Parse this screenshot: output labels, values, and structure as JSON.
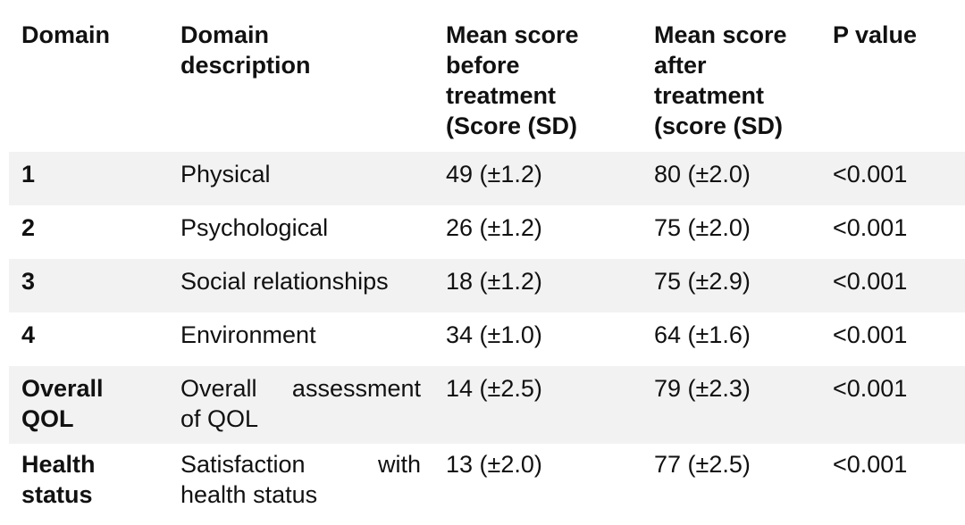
{
  "table": {
    "headers": {
      "domain": "Domain",
      "description": [
        "Domain",
        "description"
      ],
      "before": [
        "Mean score",
        "before",
        "treatment",
        "(Score (SD)"
      ],
      "after": [
        "Mean score",
        "after",
        "treatment",
        "(score (SD)"
      ],
      "pvalue": "P value"
    },
    "rows": [
      {
        "domain": [
          "1"
        ],
        "description": [
          "Physical"
        ],
        "before": "49 (±1.2)",
        "after": "80 (±2.0)",
        "p": "<0.001"
      },
      {
        "domain": [
          "2"
        ],
        "description": [
          "Psychological"
        ],
        "before": "26 (±1.2)",
        "after": "75 (±2.0)",
        "p": "<0.001"
      },
      {
        "domain": [
          "3"
        ],
        "description": [
          "Social relationships"
        ],
        "before": "18 (±1.2)",
        "after": "75 (±2.9)",
        "p": "<0.001"
      },
      {
        "domain": [
          "4"
        ],
        "description": [
          "Environment"
        ],
        "before": "34 (±1.0)",
        "after": "64 (±1.6)",
        "p": "<0.001"
      },
      {
        "domain": [
          "Overall",
          "QOL"
        ],
        "description": [
          "Overall assessment",
          "of QOL"
        ],
        "before": "14 (±2.5)",
        "after": "79 (±2.3)",
        "p": "<0.001"
      },
      {
        "domain": [
          "Health",
          "status"
        ],
        "description": [
          "Satisfaction with",
          "health status"
        ],
        "before": "13 (±2.0)",
        "after": "77 (±2.5)",
        "p": "<0.001"
      }
    ]
  }
}
